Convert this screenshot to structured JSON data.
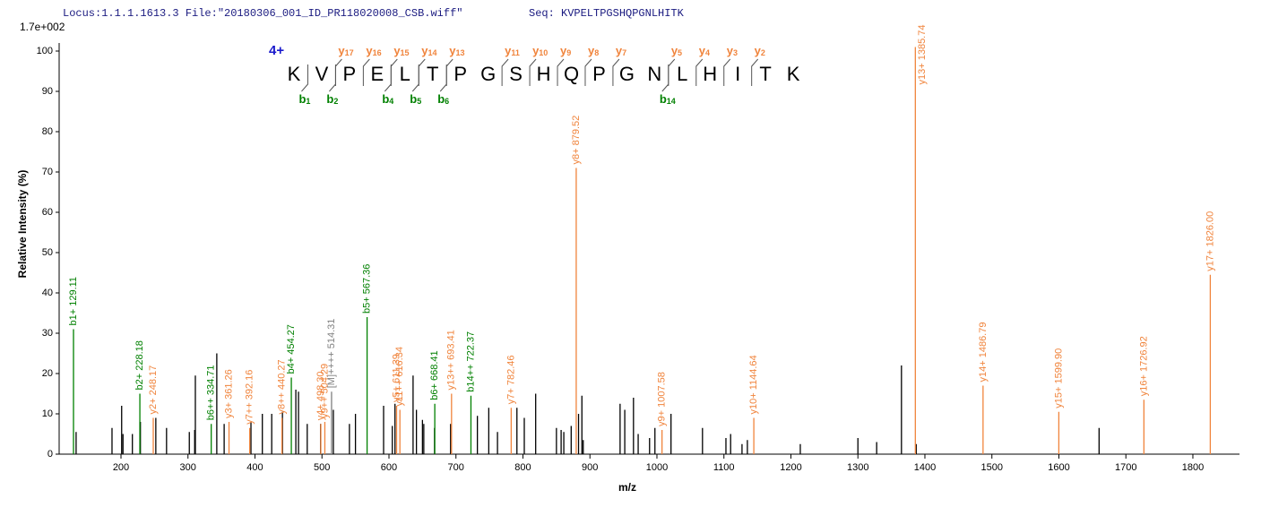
{
  "chart_data": {
    "type": "spectrum",
    "header": "Locus:1.1.1.1613.3 File:\"20180306_001_ID_PR118020008_CSB.wiff\"",
    "sequence_label": "Seq: KVPELTPGSHQPGNLHITK",
    "scale_label": "1.7e+002",
    "xlabel": "m/z",
    "ylabel": "Relative Intensity (%)",
    "xlim": [
      107.7,
      1869.6
    ],
    "ylim": [
      0,
      102
    ],
    "xticks": [
      200,
      300,
      400,
      500,
      600,
      700,
      800,
      900,
      1000,
      1100,
      1200,
      1300,
      1400,
      1500,
      1600,
      1700,
      1800
    ],
    "yticks": [
      0,
      10,
      20,
      30,
      40,
      50,
      60,
      70,
      80,
      90,
      100
    ],
    "peptide": {
      "charge": "4+",
      "residues": [
        "K",
        "V",
        "P",
        "E",
        "L",
        "T",
        "P",
        "G",
        "S",
        "H",
        "Q",
        "P",
        "G",
        "N",
        "L",
        "H",
        "I",
        "T",
        "K"
      ],
      "y_letter": "y",
      "y_color": "#f0843c",
      "y_ions": [
        17,
        16,
        15,
        14,
        13,
        11,
        10,
        9,
        8,
        7,
        5,
        4,
        3,
        2
      ],
      "b_letter": "b",
      "b_color": "#008000",
      "b_ions": [
        1,
        2,
        4,
        5,
        6,
        14
      ]
    },
    "series": [
      {
        "color": "#000000",
        "x": [
          133,
          186.6,
          201,
          203,
          217,
          229,
          252,
          268,
          302,
          310,
          311,
          343,
          354,
          394,
          411,
          425,
          441,
          461,
          465,
          478,
          498,
          517,
          541,
          550,
          592,
          605,
          609,
          636,
          641,
          650,
          652,
          668,
          692,
          732,
          749,
          762,
          791,
          802,
          819,
          850,
          857,
          861,
          872,
          883,
          888,
          890,
          945,
          952,
          965,
          972,
          989,
          997,
          1021,
          1068,
          1103,
          1110,
          1127,
          1135,
          1214,
          1300,
          1328,
          1365,
          1387,
          1660
        ],
        "values": [
          5.5,
          6.5,
          12,
          5,
          5,
          8,
          9,
          6.5,
          5.5,
          6,
          19.5,
          25,
          7.5,
          8,
          10,
          10,
          10.5,
          16,
          15.5,
          7.5,
          7.5,
          11,
          7.5,
          10,
          12,
          7,
          12.5,
          19.5,
          11,
          8.5,
          7.5,
          6.5,
          7.5,
          9.5,
          11.5,
          5.5,
          11.5,
          9,
          15,
          6.5,
          6,
          5.5,
          7,
          10,
          14.5,
          3.5,
          12.5,
          11,
          14,
          5,
          4,
          6.5,
          10,
          6.5,
          4,
          5,
          2.5,
          3.5,
          2.5,
          4,
          3,
          22,
          2.5,
          6.5
        ]
      },
      {
        "color": "#808080",
        "x": [
          514.31
        ],
        "values": [
          15.5
        ],
        "labels": [
          "[M]++++ 514.31"
        ]
      },
      {
        "color": "#008000",
        "x": [
          129.11,
          228.18,
          334.71,
          454.27,
          567.36,
          668.41,
          722.37
        ],
        "values": [
          31,
          15,
          7.5,
          19,
          34,
          12.5,
          14.5
        ],
        "labels": [
          "b1+ 129.11",
          "b2+ 228.18",
          "b6++ 334.71",
          "b4+ 454.27",
          "b5+ 567.36",
          "b6+ 668.41",
          "b14++ 722.37"
        ]
      },
      {
        "color": "#f0843c",
        "x": [
          248.17,
          361.26,
          392.16,
          440.27,
          498.3,
          504.29,
          611.39,
          616.34,
          693.41,
          782.46,
          879.52,
          1007.58,
          1144.64,
          1385.74,
          1486.79,
          1599.9,
          1726.92,
          1826.0
        ],
        "values": [
          9,
          8,
          6.5,
          9,
          7.5,
          8,
          12,
          11,
          15,
          11.5,
          71,
          6,
          9,
          101,
          17,
          10.5,
          13.5,
          44.5
        ],
        "labels": [
          "y2+ 248.17",
          "y3+ 361.26",
          "y7++ 392.16",
          "y8++ 440.27",
          "y4+ 498.30",
          "y9++ 504.29",
          "y5+ 611.39",
          "y11++ 616.34",
          "y13++ 693.41",
          "y7+ 782.46",
          "y8+ 879.52",
          "y9+ 1007.58",
          "y10+ 1144.64",
          "y13+ 1385.74",
          "y14+ 1486.79",
          "y15+ 1599.90",
          "y16+ 1726.92",
          "y17+ 1826.00"
        ]
      }
    ]
  }
}
